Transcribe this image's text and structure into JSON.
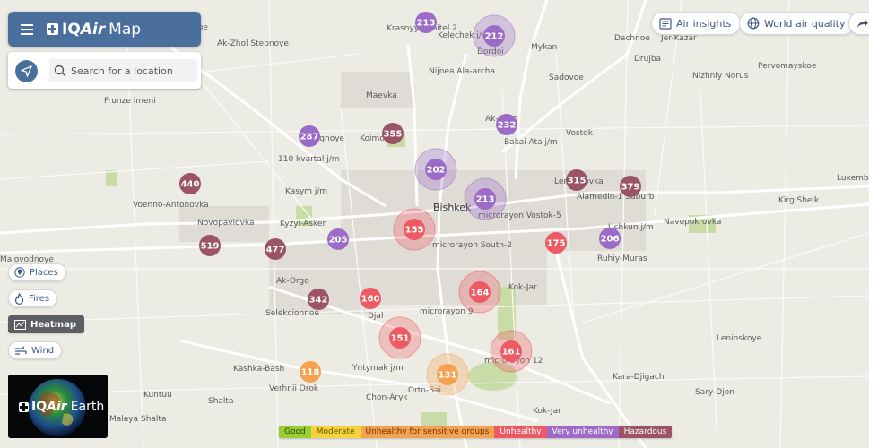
{
  "header": {
    "brand_plus": "+",
    "brand_iq": "IQ",
    "brand_air": "Air",
    "brand_map": "Map"
  },
  "search": {
    "placeholder": "Search for a location"
  },
  "top_buttons": [
    {
      "label": "Air insights",
      "icon": "news-icon"
    },
    {
      "label": "World air quality",
      "icon": "globe-icon"
    }
  ],
  "layers": [
    {
      "label": "Places",
      "icon": "pin-icon",
      "active": false
    },
    {
      "label": "Fires",
      "icon": "fire-icon",
      "active": false
    },
    {
      "label": "Heatmap",
      "icon": "heatmap-icon",
      "active": true
    },
    {
      "label": "Wind",
      "icon": "wind-icon",
      "active": false
    }
  ],
  "earth_promo": {
    "brand_iq": "IQ",
    "brand_air": "Air",
    "label": "Earth"
  },
  "legend": [
    {
      "label": "Good",
      "color": "#9acd32"
    },
    {
      "label": "Moderate",
      "color": "#f5d33a"
    },
    {
      "label": "Unhealthy for sensitive groups",
      "color": "#f4a24f"
    },
    {
      "label": "Unhealthy",
      "color": "#ee5a63"
    },
    {
      "label": "Very unhealthy",
      "color": "#9b6bc7"
    },
    {
      "label": "Hazardous",
      "color": "#9b5367"
    }
  ],
  "map_labels": [
    "Ak-Zhol Stepnoye",
    "Krasnyy stroitel 2",
    "Kelechek j/m",
    "Dordoi",
    "Mykan",
    "Dachnoe",
    "Jer-Kazar",
    "Drujba",
    "Nizhniy Norus",
    "Pervomayskoe",
    "Sadovoe",
    "Nijnea Ala-archa",
    "Maevka",
    "Frunze imeni",
    "Pregnoye",
    "Koimo",
    "Ak-Orgo",
    "Bakai Ata j/m",
    "Vostok",
    "110 kvartal j/m",
    "Kasym j/m",
    "Lenina-ovka",
    "Alamedin-1 Suburb",
    "Kirg Shelk",
    "Luxembu",
    "Voenno-Antonovka",
    "Novopavlovka",
    "Kyzyl-Asker",
    "Bishkek",
    "microrayon Vostok-5",
    "Uchkun j/m",
    "Navopokrovka",
    "Malovodnoye",
    "microrayon South-2",
    "Ruhiy-Muras",
    "Ak-Orgo",
    "Kok-Jar",
    "Selekcionnoe",
    "Djal",
    "microrayon 9",
    "Leninskoye",
    "microrayon 12",
    "Kashka-Bash",
    "Yntymak j/m",
    "Verhnii Orok",
    "Orto-Sai",
    "Kara-Djigach",
    "Kuntuu",
    "Chon-Aryk",
    "Sary-Djon",
    "Shalta",
    "Malaya Shalta",
    "Kok-Jar"
  ],
  "map_stations": [
    {
      "aqi": 213,
      "level": "Very unhealthy"
    },
    {
      "aqi": 212,
      "level": "Very unhealthy"
    },
    {
      "aqi": 232,
      "level": "Very unhealthy"
    },
    {
      "aqi": 287,
      "level": "Very unhealthy"
    },
    {
      "aqi": 355,
      "level": "Hazardous"
    },
    {
      "aqi": 202,
      "level": "Very unhealthy"
    },
    {
      "aqi": 315,
      "level": "Hazardous"
    },
    {
      "aqi": 379,
      "level": "Hazardous"
    },
    {
      "aqi": 440,
      "level": "Hazardous"
    },
    {
      "aqi": 213,
      "level": "Very unhealthy"
    },
    {
      "aqi": 155,
      "level": "Unhealthy"
    },
    {
      "aqi": 175,
      "level": "Unhealthy"
    },
    {
      "aqi": 206,
      "level": "Very unhealthy"
    },
    {
      "aqi": 519,
      "level": "Hazardous"
    },
    {
      "aqi": 477,
      "level": "Hazardous"
    },
    {
      "aqi": 205,
      "level": "Very unhealthy"
    },
    {
      "aqi": 342,
      "level": "Hazardous"
    },
    {
      "aqi": 160,
      "level": "Unhealthy"
    },
    {
      "aqi": 164,
      "level": "Unhealthy"
    },
    {
      "aqi": 151,
      "level": "Unhealthy"
    },
    {
      "aqi": 161,
      "level": "Unhealthy"
    },
    {
      "aqi": 118,
      "level": "Unhealthy for sensitive groups"
    },
    {
      "aqi": 131,
      "level": "Unhealthy for sensitive groups"
    }
  ]
}
